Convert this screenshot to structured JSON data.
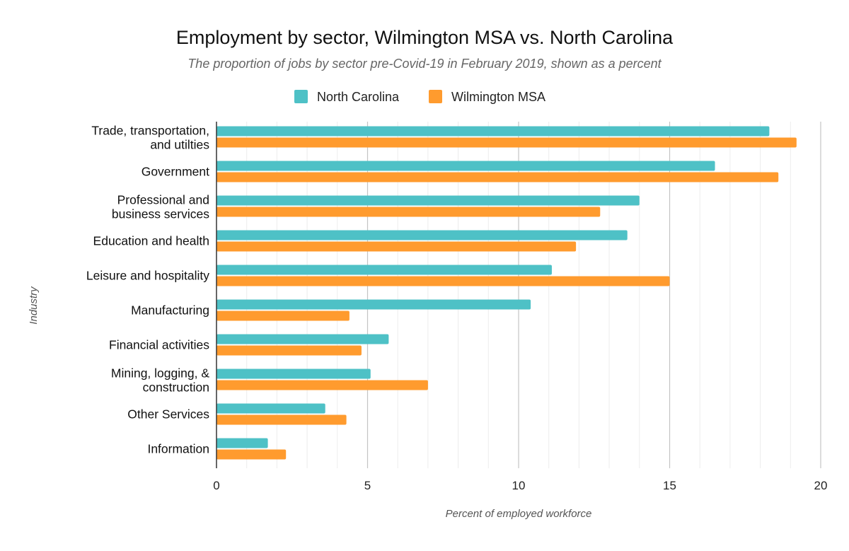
{
  "chart_data": {
    "type": "bar",
    "orientation": "horizontal",
    "title": "Employment by sector, Wilmington MSA vs. North Carolina",
    "subtitle": "The proportion of jobs by sector pre-Covid-19 in February 2019, shown as a percent",
    "xlabel": "Percent of employed workforce",
    "ylabel": "Industry",
    "xlim": [
      0,
      20
    ],
    "x_ticks": [
      "0",
      "5",
      "10",
      "15",
      "20"
    ],
    "grid": true,
    "legend_position": "top",
    "categories": [
      [
        "Trade, transportation,",
        "and utilties"
      ],
      [
        "Government"
      ],
      [
        "Professional and",
        "business services"
      ],
      [
        "Education and health"
      ],
      [
        "Leisure and hospitality"
      ],
      [
        "Manufacturing"
      ],
      [
        "Financial activities"
      ],
      [
        "Mining, logging, &",
        "construction"
      ],
      [
        "Other Services"
      ],
      [
        "Information"
      ]
    ],
    "series": [
      {
        "name": "North Carolina",
        "color": "#4ec1c6",
        "values": [
          18.3,
          16.5,
          14.0,
          13.6,
          11.1,
          10.4,
          5.7,
          5.1,
          3.6,
          1.7
        ]
      },
      {
        "name": "Wilmington MSA",
        "color": "#ff9b2e",
        "values": [
          19.2,
          18.6,
          12.7,
          11.9,
          15.0,
          4.4,
          4.8,
          7.0,
          4.3,
          2.3
        ]
      }
    ]
  }
}
